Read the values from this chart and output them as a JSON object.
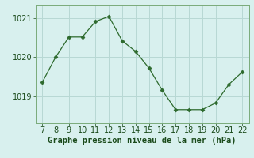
{
  "x": [
    7,
    8,
    9,
    10,
    11,
    12,
    13,
    14,
    15,
    16,
    17,
    18,
    19,
    20,
    21,
    22
  ],
  "y": [
    1019.35,
    1020.0,
    1020.52,
    1020.52,
    1020.92,
    1021.05,
    1020.42,
    1020.15,
    1019.72,
    1019.15,
    1018.65,
    1018.65,
    1018.65,
    1018.82,
    1019.3,
    1019.62
  ],
  "line_color": "#2d6a2d",
  "marker": "D",
  "marker_size": 2.5,
  "bg_color": "#d8f0ee",
  "grid_color": "#b8d8d4",
  "xlabel": "Graphe pression niveau de la mer (hPa)",
  "xlabel_color": "#1a4a1a",
  "xlabel_fontsize": 7.5,
  "tick_color": "#1a4a1a",
  "tick_fontsize": 7,
  "ylim": [
    1018.3,
    1021.35
  ],
  "yticks": [
    1019,
    1020,
    1021
  ],
  "xlim": [
    6.5,
    22.5
  ],
  "xticks": [
    7,
    8,
    9,
    10,
    11,
    12,
    13,
    14,
    15,
    16,
    17,
    18,
    19,
    20,
    21,
    22
  ]
}
